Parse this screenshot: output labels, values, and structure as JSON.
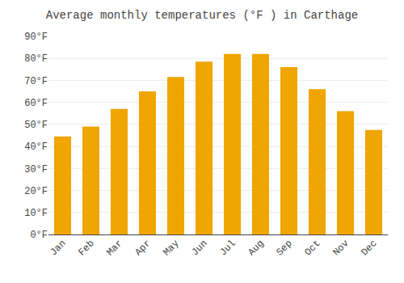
{
  "chart_data": {
    "type": "bar",
    "title": "Average monthly temperatures (°F ) in Carthage",
    "categories": [
      "Jan",
      "Feb",
      "Mar",
      "Apr",
      "May",
      "Jun",
      "Jul",
      "Aug",
      "Sep",
      "Oct",
      "Nov",
      "Dec"
    ],
    "values": [
      44.5,
      49,
      57,
      65,
      71.5,
      78.5,
      82,
      82,
      76,
      66,
      56,
      47.5
    ],
    "color": "#F0A500",
    "ylim": [
      0,
      90
    ],
    "yticks": [
      {
        "value": 0,
        "label": "0°F"
      },
      {
        "value": 10,
        "label": "10°F"
      },
      {
        "value": 20,
        "label": "20°F"
      },
      {
        "value": 30,
        "label": "30°F"
      },
      {
        "value": 40,
        "label": "40°F"
      },
      {
        "value": 50,
        "label": "50°F"
      },
      {
        "value": 60,
        "label": "60°F"
      },
      {
        "value": 70,
        "label": "70°F"
      },
      {
        "value": 80,
        "label": "80°F"
      },
      {
        "value": 90,
        "label": "90°F"
      }
    ],
    "grid": true
  }
}
